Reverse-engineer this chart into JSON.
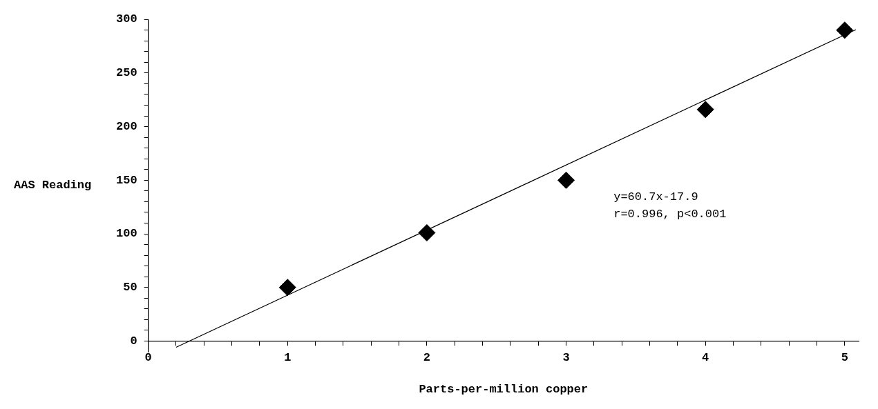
{
  "chart_data": {
    "type": "scatter",
    "xlabel": "Parts-per-million copper",
    "ylabel": "AAS Reading",
    "x": [
      1,
      2,
      3,
      4,
      5
    ],
    "xlim": [
      0,
      5.1
    ],
    "ylim": [
      -10,
      300
    ],
    "xticks": [
      0,
      {
        "value": 0.2,
        "label": null
      },
      {
        "value": 0.4,
        "label": null
      },
      {
        "value": 0.6,
        "label": null
      },
      {
        "value": 0.8,
        "label": null
      },
      1,
      {
        "value": 1.2,
        "label": null
      },
      {
        "value": 1.4,
        "label": null
      },
      {
        "value": 1.6,
        "label": null
      },
      {
        "value": 1.8,
        "label": null
      },
      2,
      {
        "value": 2.2,
        "label": null
      },
      {
        "value": 2.4,
        "label": null
      },
      {
        "value": 2.6,
        "label": null
      },
      {
        "value": 2.8,
        "label": null
      },
      3,
      {
        "value": 3.2,
        "label": null
      },
      {
        "value": 3.4,
        "label": null
      },
      {
        "value": 3.6,
        "label": null
      },
      {
        "value": 3.8,
        "label": null
      },
      4,
      {
        "value": 4.2,
        "label": null
      },
      {
        "value": 4.4,
        "label": null
      },
      {
        "value": 4.6,
        "label": null
      },
      {
        "value": 4.8,
        "label": null
      },
      5
    ],
    "yticks": [
      0,
      {
        "value": 10,
        "label": null
      },
      {
        "value": 20,
        "label": null
      },
      {
        "value": 30,
        "label": null
      },
      {
        "value": 40,
        "label": null
      },
      50,
      {
        "value": 60,
        "label": null
      },
      {
        "value": 70,
        "label": null
      },
      {
        "value": 80,
        "label": null
      },
      {
        "value": 90,
        "label": null
      },
      100,
      {
        "value": 110,
        "label": null
      },
      {
        "value": 120,
        "label": null
      },
      {
        "value": 130,
        "label": null
      },
      {
        "value": 140,
        "label": null
      },
      150,
      {
        "value": 160,
        "label": null
      },
      {
        "value": 170,
        "label": null
      },
      {
        "value": 180,
        "label": null
      },
      {
        "value": 190,
        "label": null
      },
      200,
      {
        "value": 210,
        "label": null
      },
      {
        "value": 220,
        "label": null
      },
      {
        "value": 230,
        "label": null
      },
      {
        "value": 240,
        "label": null
      },
      250,
      {
        "value": 260,
        "label": null
      },
      {
        "value": 270,
        "label": null
      },
      {
        "value": 280,
        "label": null
      },
      {
        "value": 290,
        "label": null
      },
      300
    ],
    "annotations": [
      "y=60.7x-17.9",
      "r=0.996, p<0.001"
    ],
    "series": [
      {
        "color": "#000000",
        "marker": "diamond",
        "values": [
          50,
          101,
          150,
          216,
          290
        ]
      },
      {
        "type": "line",
        "color": "#000000",
        "marker": "none",
        "line_style": "solid",
        "x": [
          0.2,
          5.08
        ],
        "values": [
          -5.8,
          290.5
        ]
      }
    ]
  }
}
